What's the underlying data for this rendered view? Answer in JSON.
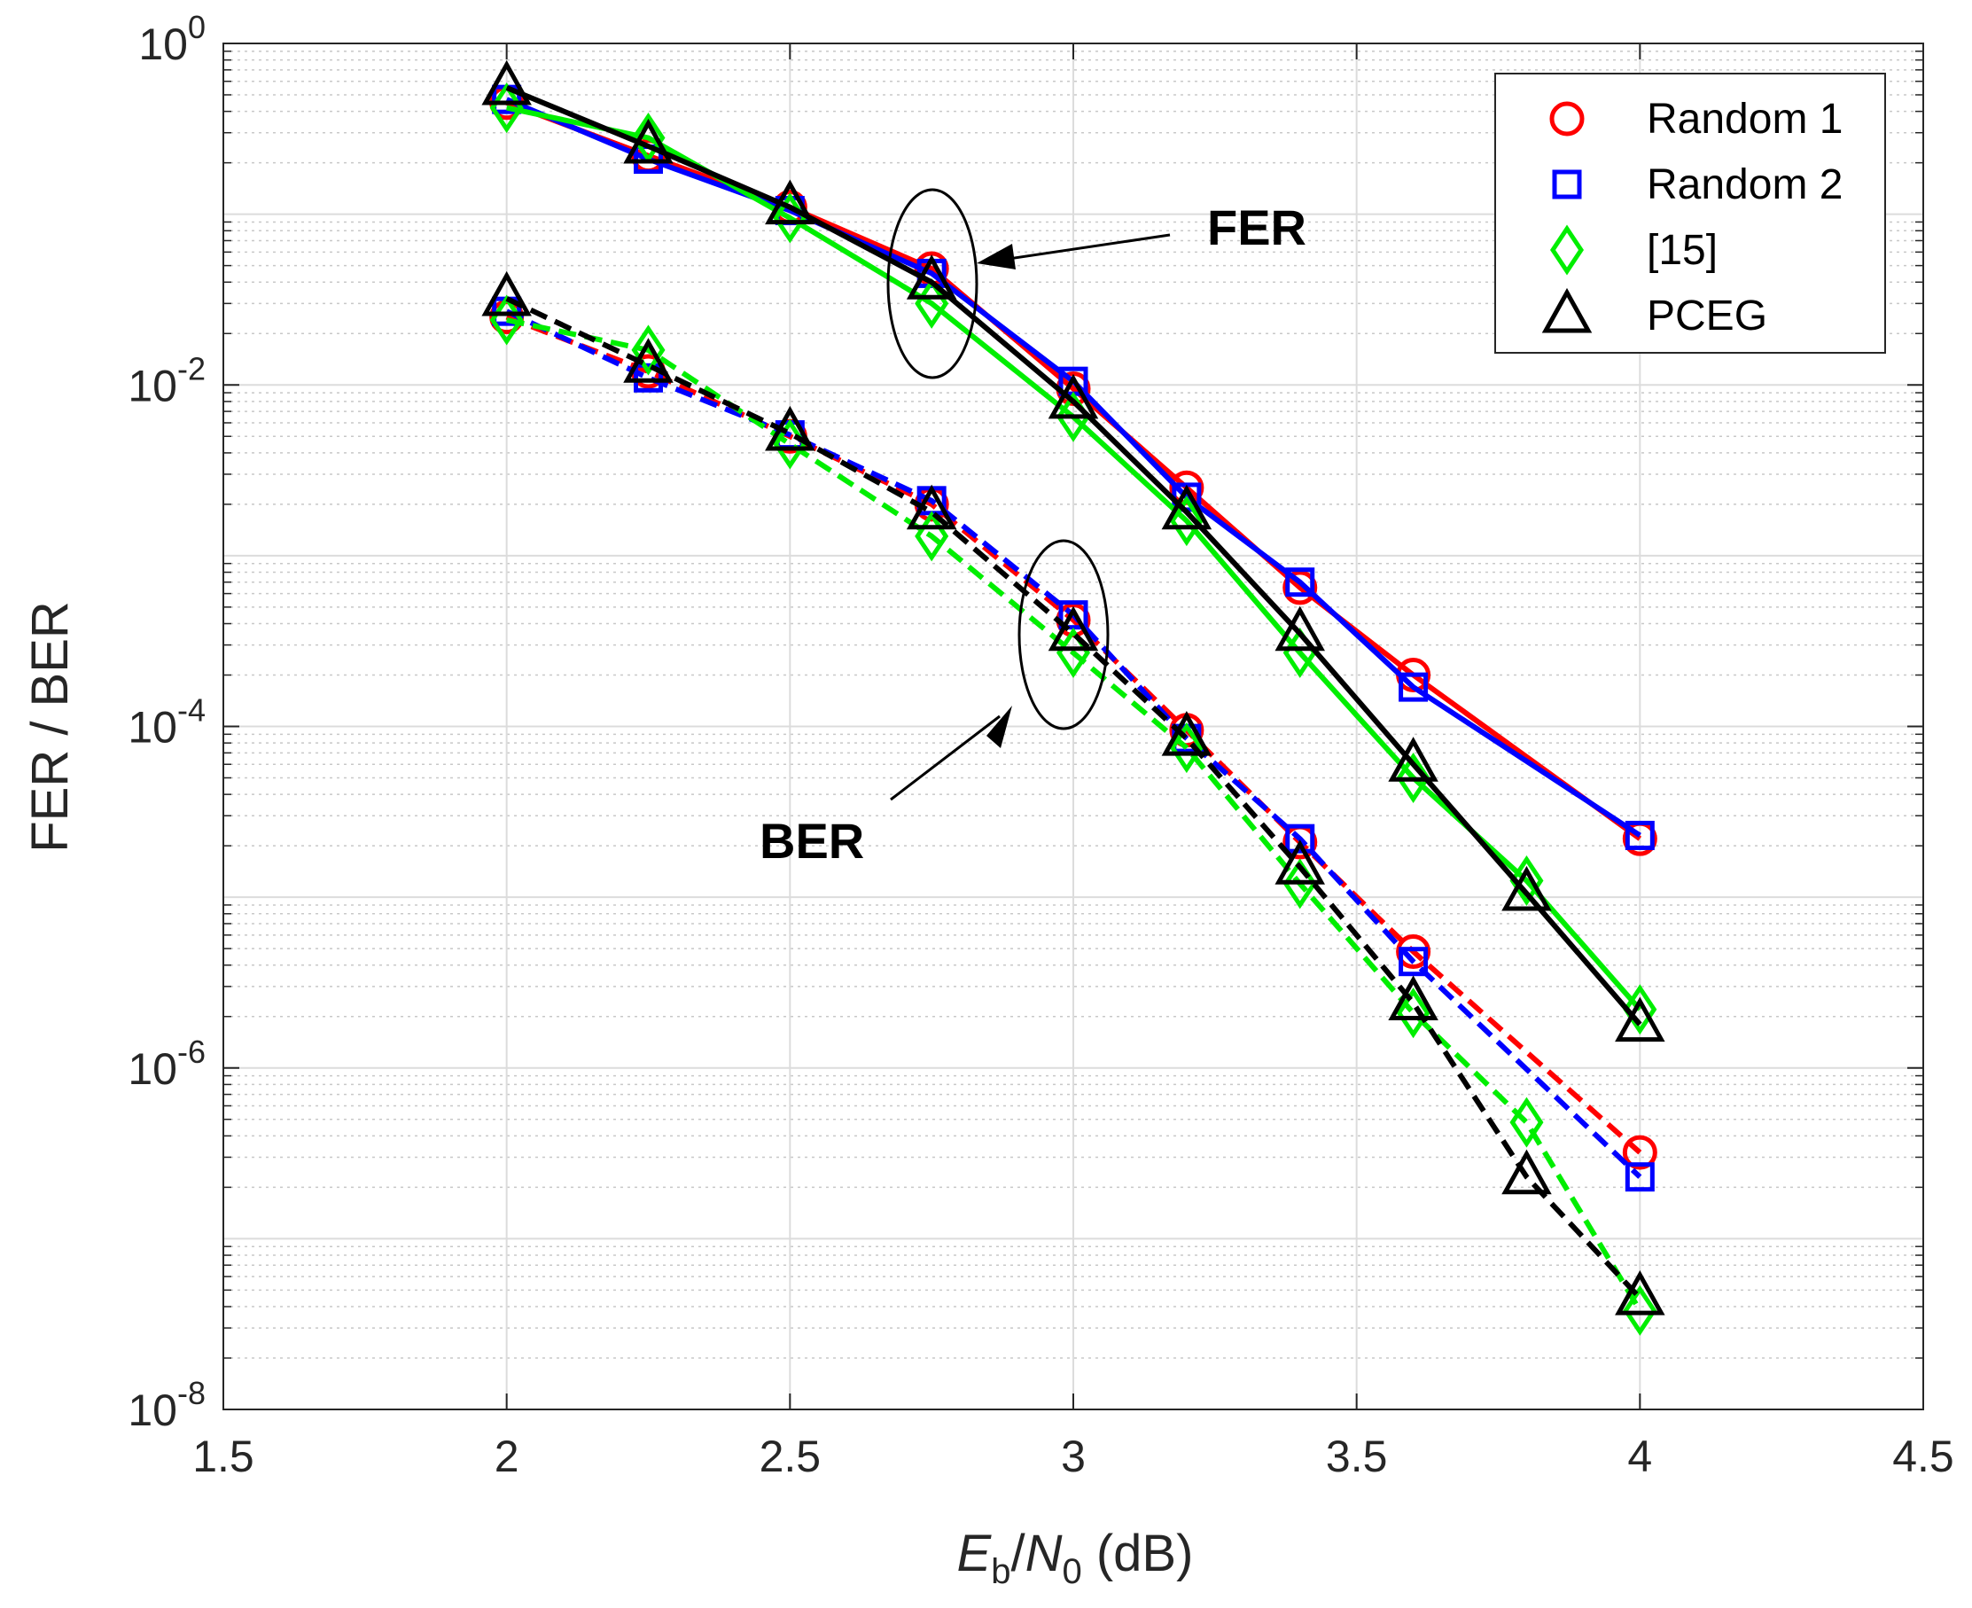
{
  "chart_data": {
    "type": "line",
    "ylabel": "FER / BER",
    "xlabel": {
      "E": "E",
      "b": "b",
      "slash": "/",
      "N": "N",
      "zero": "0",
      "unit": " (dB)"
    },
    "xlim": [
      1.5,
      4.5
    ],
    "ylim_log10": [
      -8,
      0
    ],
    "xticks": [
      1.5,
      2,
      2.5,
      3,
      3.5,
      4,
      4.5
    ],
    "xtick_labels": [
      "1.5",
      "2",
      "2.5",
      "3",
      "3.5",
      "4",
      "4.5"
    ],
    "yticks": [
      {
        "base": "10",
        "exp": "0"
      },
      {
        "base": "10",
        "exp": "-2"
      },
      {
        "base": "10",
        "exp": "-4"
      },
      {
        "base": "10",
        "exp": "-6"
      },
      {
        "base": "10",
        "exp": "-8"
      }
    ],
    "ytick_values_log10": [
      0,
      -2,
      -4,
      -6,
      -8
    ],
    "grid": true,
    "legend_position": "top-right",
    "legend": [
      "Random 1",
      "Random 2",
      "[15]",
      "PCEG"
    ],
    "annotations": [
      {
        "text": "FER",
        "points_to_x": 2.75,
        "points_to_y": 0.04
      },
      {
        "text": "BER",
        "points_to_x": 2.98,
        "points_to_y": 0.00035
      }
    ],
    "series": [
      {
        "name": "Random 1",
        "metric": "FER",
        "color": "#ff0000",
        "marker": "circle",
        "x": [
          2,
          2.25,
          2.5,
          2.75,
          3,
          3.2,
          3.4,
          3.6,
          4
        ],
        "y": [
          0.45,
          0.22,
          0.11,
          0.048,
          0.0095,
          0.0025,
          0.00065,
          0.0002,
          2.2e-05
        ]
      },
      {
        "name": "Random 2",
        "metric": "FER",
        "color": "#0000ff",
        "marker": "square",
        "x": [
          2,
          2.25,
          2.5,
          2.75,
          3,
          3.2,
          3.4,
          3.6,
          4
        ],
        "y": [
          0.47,
          0.21,
          0.105,
          0.045,
          0.0105,
          0.0022,
          0.0007,
          0.00017,
          2.3e-05
        ]
      },
      {
        "name": "[15]",
        "metric": "FER",
        "color": "#00ee00",
        "marker": "diamond",
        "x": [
          2,
          2.25,
          2.5,
          2.75,
          3,
          3.2,
          3.4,
          3.6,
          3.8,
          4
        ],
        "y": [
          0.42,
          0.28,
          0.095,
          0.03,
          0.0065,
          0.0016,
          0.00027,
          5e-05,
          1.25e-05,
          2.2e-06
        ]
      },
      {
        "name": "PCEG",
        "metric": "FER",
        "color": "#000000",
        "marker": "triangle",
        "x": [
          2,
          2.25,
          2.5,
          2.75,
          3,
          3.2,
          3.4,
          3.6,
          3.8,
          4
        ],
        "y": [
          0.55,
          0.25,
          0.11,
          0.04,
          0.008,
          0.0018,
          0.00035,
          6e-05,
          1.05e-05,
          1.8e-06
        ]
      },
      {
        "name": "Random 1",
        "metric": "BER",
        "color": "#ff0000",
        "marker": "circle",
        "x": [
          2,
          2.25,
          2.5,
          2.75,
          3,
          3.2,
          3.4,
          3.6,
          4
        ],
        "y": [
          0.025,
          0.012,
          0.005,
          0.002,
          0.00042,
          9.5e-05,
          2.1e-05,
          4.8e-06,
          3.2e-07
        ]
      },
      {
        "name": "Random 2",
        "metric": "BER",
        "color": "#0000ff",
        "marker": "square",
        "x": [
          2,
          2.25,
          2.5,
          2.75,
          3,
          3.2,
          3.4,
          3.6,
          4
        ],
        "y": [
          0.027,
          0.011,
          0.0051,
          0.0021,
          0.00045,
          8.5e-05,
          2.2e-05,
          4.2e-06,
          2.3e-07
        ]
      },
      {
        "name": "[15]",
        "metric": "BER",
        "color": "#00ee00",
        "marker": "diamond",
        "x": [
          2,
          2.25,
          2.5,
          2.75,
          3,
          3.2,
          3.4,
          3.6,
          3.8,
          4
        ],
        "y": [
          0.024,
          0.016,
          0.0045,
          0.0013,
          0.00027,
          7.5e-05,
          1.2e-05,
          2.1e-06,
          4.8e-07,
          3.8e-08
        ]
      },
      {
        "name": "PCEG",
        "metric": "BER",
        "color": "#000000",
        "marker": "triangle",
        "x": [
          2,
          2.25,
          2.5,
          2.75,
          3,
          3.2,
          3.4,
          3.6,
          3.8,
          4
        ],
        "y": [
          0.032,
          0.013,
          0.0052,
          0.0018,
          0.00035,
          8.5e-05,
          1.5e-05,
          2.4e-06,
          2.3e-07,
          4.5e-08
        ]
      }
    ]
  }
}
